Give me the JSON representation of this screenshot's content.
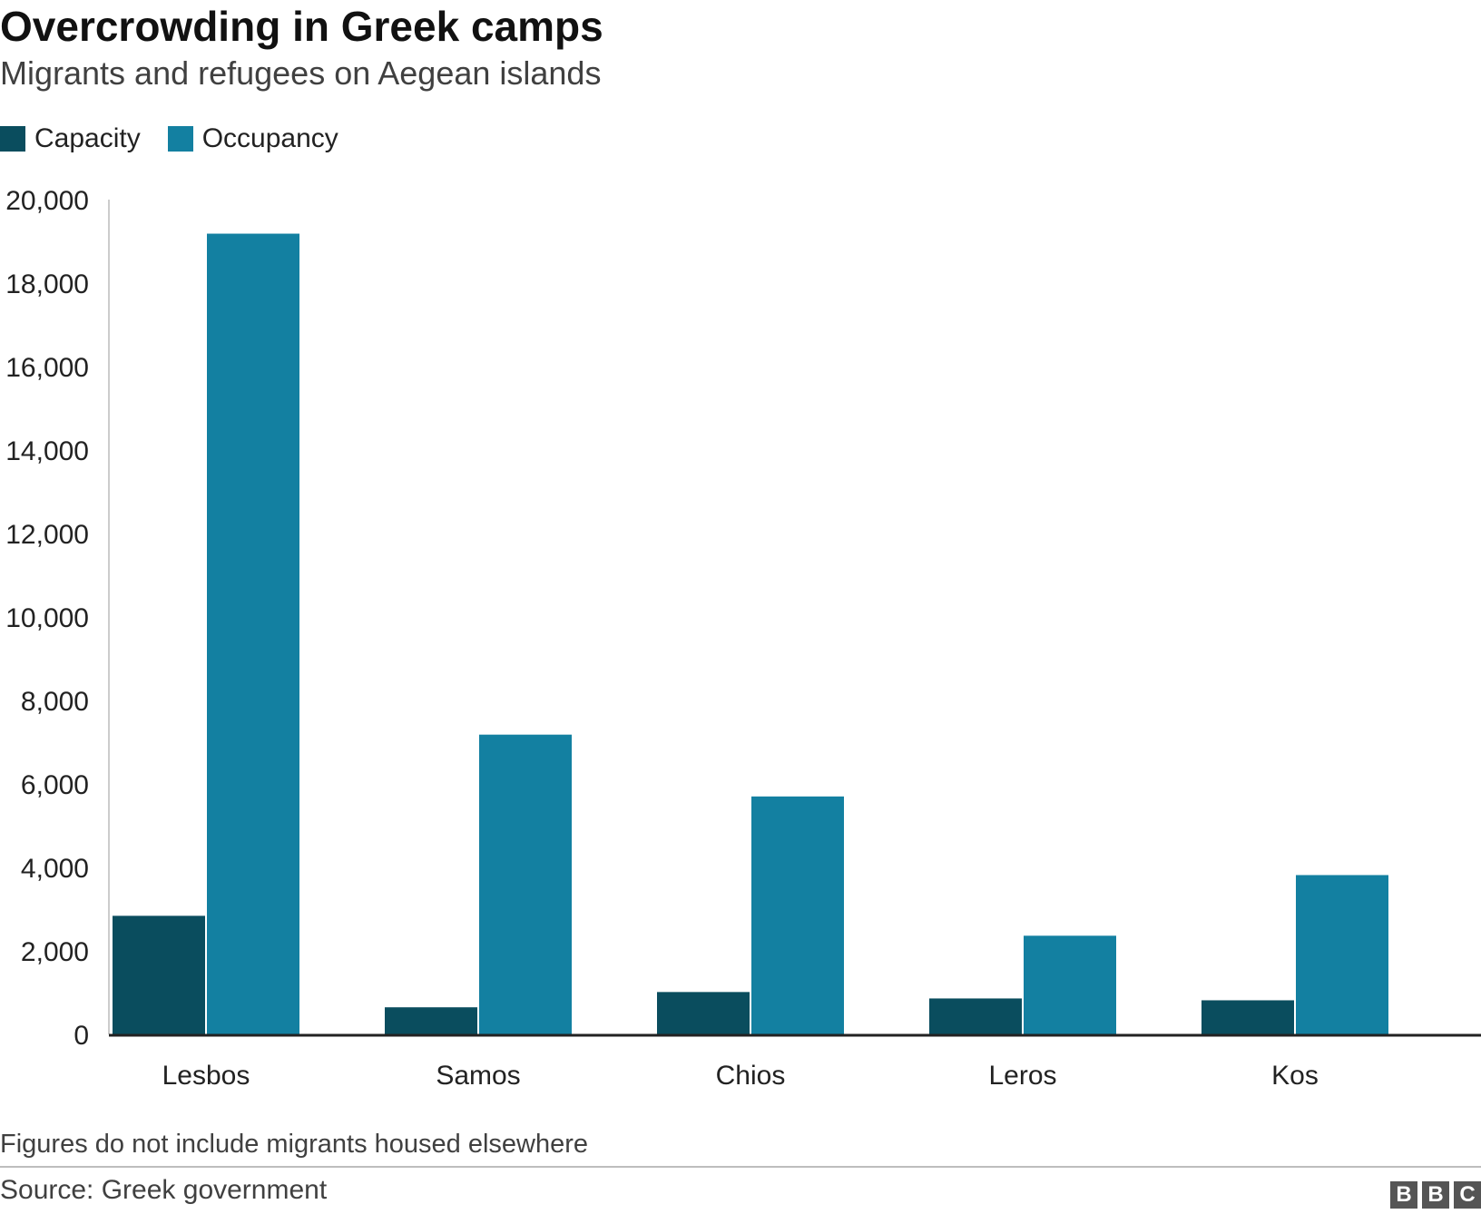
{
  "header": {
    "title": "Overcrowding in Greek camps",
    "subtitle": "Migrants and refugees on Aegean islands"
  },
  "legend": {
    "items": [
      {
        "label": "Capacity",
        "color": "#0a4d5e"
      },
      {
        "label": "Occupancy",
        "color": "#1380a1"
      }
    ]
  },
  "chart_data": {
    "type": "bar",
    "categories": [
      "Lesbos",
      "Samos",
      "Chios",
      "Leros",
      "Kos"
    ],
    "series": [
      {
        "name": "Capacity",
        "color": "#0a4d5e",
        "values": [
          2840,
          648,
          1014,
          860,
          816
        ]
      },
      {
        "name": "Occupancy",
        "color": "#1380a1",
        "values": [
          19184,
          7181,
          5700,
          2363,
          3816
        ]
      }
    ],
    "ylim": [
      0,
      20000
    ],
    "yticks": [
      0,
      2000,
      4000,
      6000,
      8000,
      10000,
      12000,
      14000,
      16000,
      18000,
      20000
    ],
    "ytick_labels": [
      "0",
      "2,000",
      "4,000",
      "6,000",
      "8,000",
      "10,000",
      "12,000",
      "14,000",
      "16,000",
      "18,000",
      "20,000"
    ],
    "legend_position": "top-left",
    "grid": false
  },
  "footer": {
    "note": "Figures do not include migrants housed elsewhere",
    "source": "Source: Greek government",
    "logo": [
      "B",
      "B",
      "C"
    ]
  }
}
